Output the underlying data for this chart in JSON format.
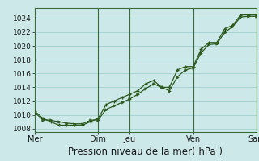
{
  "background_color": "#cce8e8",
  "grid_color": "#99cccc",
  "line_color": "#2d5a1e",
  "marker_color": "#2d5a1e",
  "xlabel": "Pression niveau de la mer( hPa )",
  "xlabel_fontsize": 8.5,
  "ylabel_fontsize": 6.5,
  "ylim": [
    1007.5,
    1025.5
  ],
  "yticks": [
    1008,
    1010,
    1012,
    1014,
    1016,
    1018,
    1020,
    1022,
    1024
  ],
  "day_labels": [
    "Mer",
    "Dim",
    "Jeu",
    "Ven",
    "Sam"
  ],
  "day_positions": [
    0,
    48,
    72,
    120,
    168
  ],
  "xlim": [
    0,
    168
  ],
  "line1_x": [
    0,
    6,
    12,
    18,
    24,
    30,
    36,
    42,
    48,
    54,
    60,
    66,
    72,
    78,
    84,
    90,
    96,
    102,
    108,
    114,
    120,
    126,
    132,
    138,
    144,
    150,
    156,
    162,
    168
  ],
  "line1_y": [
    1010.5,
    1009.5,
    1009.0,
    1008.5,
    1008.5,
    1008.5,
    1008.5,
    1009.0,
    1009.5,
    1011.5,
    1012.0,
    1012.5,
    1013.0,
    1013.5,
    1014.5,
    1015.0,
    1014.0,
    1014.0,
    1016.5,
    1017.0,
    1017.0,
    1019.5,
    1020.5,
    1020.5,
    1022.5,
    1023.0,
    1024.5,
    1024.5,
    1024.5
  ],
  "line2_x": [
    0,
    6,
    12,
    18,
    24,
    30,
    36,
    42,
    48,
    54,
    60,
    66,
    72,
    78,
    84,
    90,
    96,
    102,
    108,
    114,
    120,
    126,
    132,
    138,
    144,
    150,
    156,
    162,
    168
  ],
  "line2_y": [
    1010.3,
    1009.3,
    1009.2,
    1009.0,
    1008.8,
    1008.7,
    1008.7,
    1009.2,
    1009.3,
    1010.8,
    1011.3,
    1011.8,
    1012.3,
    1013.0,
    1013.8,
    1014.5,
    1014.0,
    1013.5,
    1015.5,
    1016.5,
    1016.8,
    1019.0,
    1020.2,
    1020.3,
    1022.0,
    1022.8,
    1024.2,
    1024.3,
    1024.3
  ],
  "vline_color": "#3a6b3a",
  "vline_positions": [
    0,
    48,
    72,
    120,
    168
  ]
}
